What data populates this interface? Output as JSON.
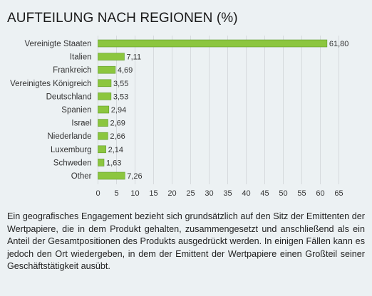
{
  "chart_data": {
    "type": "bar",
    "orientation": "horizontal",
    "title": "AUFTEILUNG NACH REGIONEN (%)",
    "categories": [
      "Vereinigte Staaten",
      "Italien",
      "Frankreich",
      "Vereinigtes Königreich",
      "Deutschland",
      "Spanien",
      "Israel",
      "Niederlande",
      "Luxemburg",
      "Schweden",
      "Other"
    ],
    "values": [
      61.8,
      7.11,
      4.69,
      3.55,
      3.53,
      2.94,
      2.69,
      2.66,
      2.14,
      1.63,
      7.26
    ],
    "value_labels": [
      "61,80",
      "7,11",
      "4,69",
      "3,55",
      "3,53",
      "2,94",
      "2,69",
      "2,66",
      "2,14",
      "1,63",
      "7,26"
    ],
    "xlim": [
      0,
      65
    ],
    "xticks": [
      0,
      5,
      10,
      15,
      20,
      25,
      30,
      35,
      40,
      45,
      50,
      55,
      60,
      65
    ],
    "grid": true,
    "bar_color": "#8cc63f",
    "bar_border_color": "#5e9a2a",
    "grid_color": "#d6dadd"
  },
  "description": "Ein geografisches Engagement bezieht sich grundsätzlich auf den Sitz der Emittenten der Wertpapiere, die in dem Produkt gehalten, zusammengesetzt und anschließend als ein Anteil der Gesamtpositionen des Produkts ausgedrückt werden. In einigen Fällen kann es jedoch den Ort wiedergeben, in dem der Emittent der Wertpapiere einen Großteil seiner Geschäftstätigkeit ausübt."
}
